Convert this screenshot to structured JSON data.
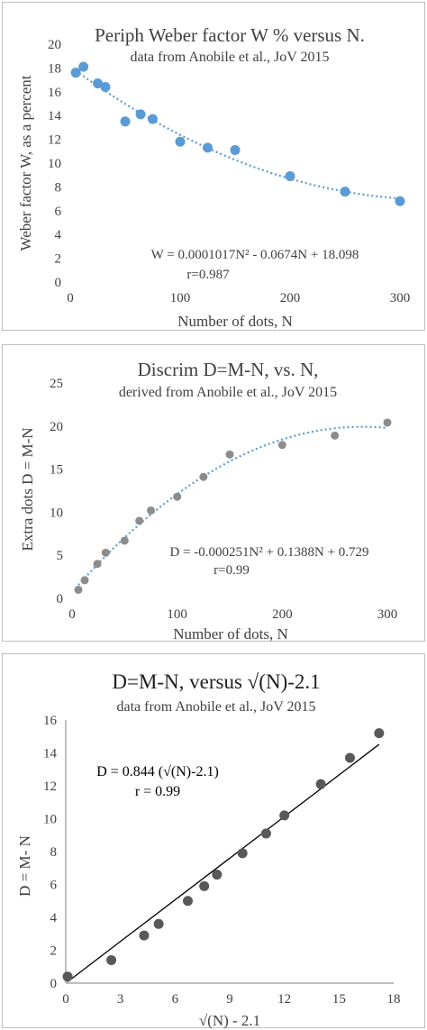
{
  "chart_data": [
    {
      "type": "scatter",
      "title": "Periph Weber factor W % versus N.",
      "subtitle": "data from Anobile et al., JoV 2015",
      "xlabel": "Number of dots, N",
      "ylabel": "Weber factor W, as a percent",
      "xlim": [
        0,
        300
      ],
      "ylim": [
        0,
        20
      ],
      "xticks": [
        0,
        100,
        200,
        300
      ],
      "yticks": [
        0,
        2,
        4,
        6,
        8,
        10,
        12,
        14,
        16,
        18,
        20
      ],
      "grid": false,
      "point_color": "#5b9bd5",
      "trend_color": "#5b9bd5",
      "trendline": {
        "type": "polynomial",
        "coeffs": [
          0.0001017,
          -0.0674,
          18.098
        ]
      },
      "annotations": [
        "W = 0.0001017N² - 0.0674N + 18.098",
        "r=0.987"
      ],
      "series": [
        {
          "x": [
            5,
            12,
            25,
            32,
            50,
            64,
            75,
            100,
            125,
            150,
            200,
            250,
            300
          ],
          "y": [
            17.6,
            18.1,
            16.7,
            16.4,
            13.5,
            14.1,
            13.7,
            11.8,
            11.3,
            11.1,
            8.9,
            7.6,
            6.8
          ]
        }
      ]
    },
    {
      "type": "scatter",
      "title": "Discrim D=M-N, vs. N,",
      "subtitle": "derived from Anobile et al., JoV 2015",
      "xlabel": "Number of dots, N",
      "ylabel": "Extra dots D = M-N",
      "xlim": [
        0,
        300
      ],
      "ylim": [
        0,
        25
      ],
      "xticks": [
        0,
        100,
        200,
        300
      ],
      "yticks": [
        0,
        5,
        10,
        15,
        20,
        25
      ],
      "grid": false,
      "point_color": "#8c8c8c",
      "trend_color": "#5b9bd5",
      "trendline": {
        "type": "polynomial",
        "coeffs": [
          -0.000251,
          0.1388,
          0.729
        ]
      },
      "annotations": [
        "D = -0.000251N² + 0.1388N + 0.729",
        "r=0.99"
      ],
      "series": [
        {
          "x": [
            6,
            12,
            24,
            32,
            50,
            64,
            75,
            100,
            125,
            150,
            200,
            250,
            300
          ],
          "y": [
            1.0,
            2.1,
            4.0,
            5.3,
            6.7,
            9.0,
            10.2,
            11.8,
            14.1,
            16.7,
            17.8,
            18.9,
            20.4
          ]
        }
      ]
    },
    {
      "type": "scatter",
      "title": "D=M-N, versus √(N)-2.1",
      "subtitle": "data from Anobile et al., JoV 2015",
      "xlabel": "√(N) - 2.1",
      "ylabel": "D = M- N",
      "xlim": [
        0,
        18
      ],
      "ylim": [
        0,
        16
      ],
      "xticks": [
        0,
        3,
        6,
        9,
        12,
        15,
        18
      ],
      "yticks": [
        0,
        2,
        4,
        6,
        8,
        10,
        12,
        14,
        16
      ],
      "grid": false,
      "point_color": "#595959",
      "trend_color": "#000000",
      "trendline": {
        "type": "linear",
        "slope": 0.844,
        "intercept": 0
      },
      "annotations": [
        "D = 0.844 (√(N)-2.1)",
        "r = 0.99"
      ],
      "series": [
        {
          "x": [
            0.1,
            2.5,
            4.3,
            5.1,
            6.7,
            7.6,
            8.3,
            9.7,
            11.0,
            12.0,
            14.0,
            15.6,
            17.2
          ],
          "y": [
            0.4,
            1.4,
            2.9,
            3.6,
            5.0,
            5.9,
            6.6,
            7.9,
            9.1,
            10.2,
            12.1,
            13.7,
            15.2
          ]
        }
      ]
    }
  ]
}
